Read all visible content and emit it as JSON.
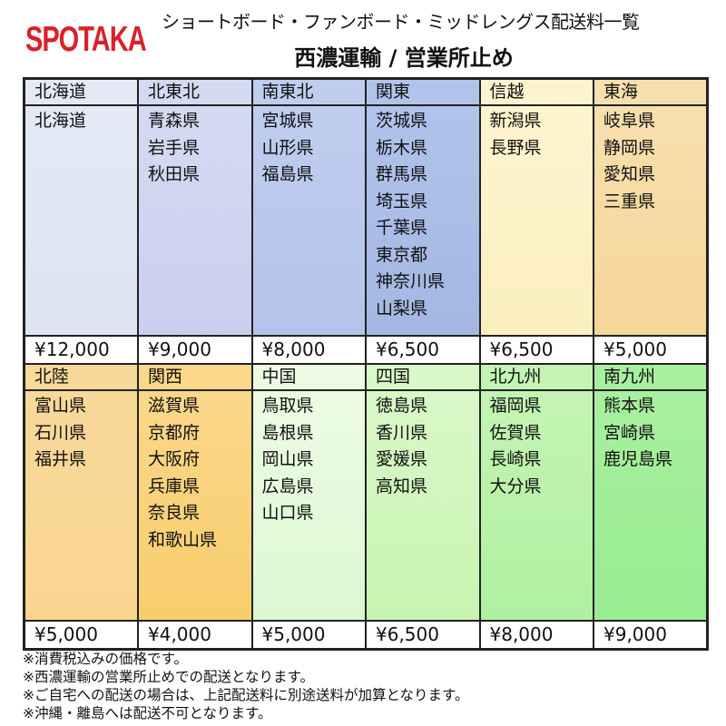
{
  "logo": "SPOTAKA",
  "title": "ショートボード・ファンボード・ミッドレングス配送料一覧",
  "subtitle": "西濃運輸 / 営業所止め",
  "rows": [
    [
      {
        "region": "北海道",
        "prefectures": [
          "北海道"
        ],
        "price": "¥12,000",
        "color_top": "#e4e9f5",
        "color_bottom": "#dde3f3"
      },
      {
        "region": "北東北",
        "prefectures": [
          "青森県",
          "岩手県",
          "秋田県"
        ],
        "price": "¥9,000",
        "color_top": "#d4daf2",
        "color_bottom": "#c9d0ee"
      },
      {
        "region": "南東北",
        "prefectures": [
          "宮城県",
          "山形県",
          "福島県"
        ],
        "price": "¥8,000",
        "color_top": "#bfcdee",
        "color_bottom": "#b3c3ea"
      },
      {
        "region": "関東",
        "prefectures": [
          "茨城県",
          "栃木県",
          "群馬県",
          "埼玉県",
          "千葉県",
          "東京都",
          "神奈川県",
          "山梨県"
        ],
        "price": "¥6,500",
        "color_top": "#b0c3ea",
        "color_bottom": "#a3b8e2"
      },
      {
        "region": "信越",
        "prefectures": [
          "新潟県",
          "長野県"
        ],
        "price": "¥6,500",
        "color_top": "#fdf4cf",
        "color_bottom": "#fbefc0"
      },
      {
        "region": "東海",
        "prefectures": [
          "岐阜県",
          "静岡県",
          "愛知県",
          "三重県"
        ],
        "price": "¥5,000",
        "color_top": "#f8dfae",
        "color_bottom": "#f6d699"
      }
    ],
    [
      {
        "region": "北陸",
        "prefectures": [
          "富山県",
          "石川県",
          "福井県"
        ],
        "price": "¥5,000",
        "color_top": "#f8d99a",
        "color_bottom": "#f9d590"
      },
      {
        "region": "関西",
        "prefectures": [
          "滋賀県",
          "京都府",
          "大阪府",
          "兵庫県",
          "奈良県",
          "和歌山県"
        ],
        "price": "¥4,000",
        "color_top": "#fad78a",
        "color_bottom": "#f8cd6c"
      },
      {
        "region": "中国",
        "prefectures": [
          "鳥取県",
          "島根県",
          "岡山県",
          "広島県",
          "山口県"
        ],
        "price": "¥5,000",
        "color_top": "#ecfce4",
        "color_bottom": "#dcf8d2"
      },
      {
        "region": "四国",
        "prefectures": [
          "徳島県",
          "香川県",
          "愛媛県",
          "高知県"
        ],
        "price": "¥6,500",
        "color_top": "#d9f8c8",
        "color_bottom": "#c8f4b2"
      },
      {
        "region": "北九州",
        "prefectures": [
          "福岡県",
          "佐賀県",
          "長崎県",
          "大分県"
        ],
        "price": "¥8,000",
        "color_top": "#c4f4b4",
        "color_bottom": "#b0f0a0"
      },
      {
        "region": "南九州",
        "prefectures": [
          "熊本県",
          "宮崎県",
          "鹿児島県"
        ],
        "price": "¥9,000",
        "color_top": "#a8f0a0",
        "color_bottom": "#98ec90"
      }
    ]
  ],
  "notes": [
    "※消費税込みの価格です。",
    "※西濃運輸の営業所止めでの配送となります。",
    "※ご自宅への配送の場合は、上記配送料に別途送料が加算となります。",
    "※沖縄・離島へは配送不可となります。"
  ]
}
